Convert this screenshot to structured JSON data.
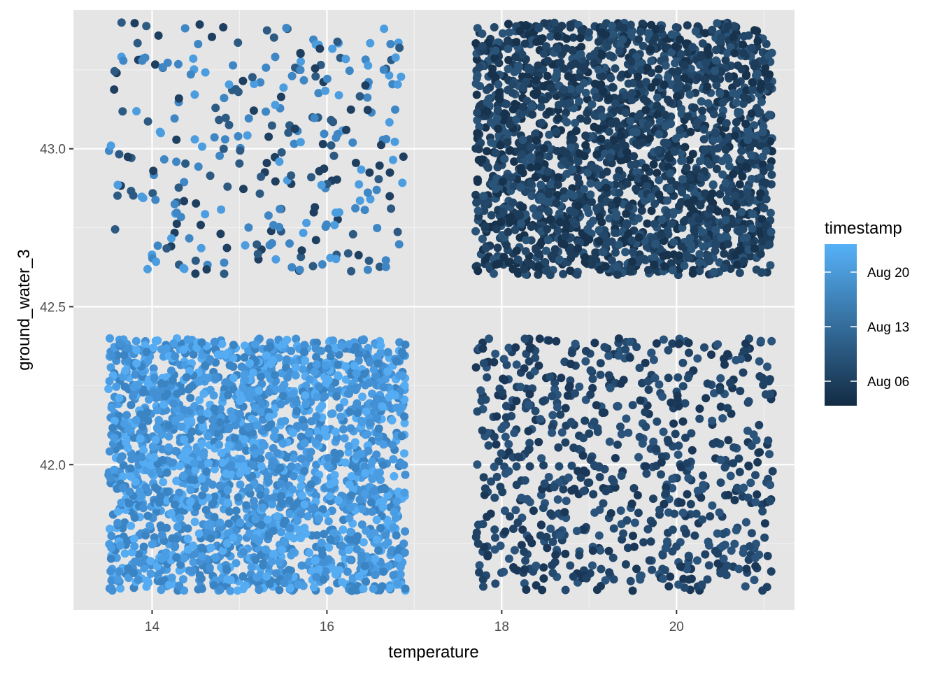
{
  "chart_data": {
    "type": "scatter",
    "title": "",
    "xlabel": "temperature",
    "ylabel": "ground_water_3",
    "xlim": [
      13.1,
      21.35
    ],
    "ylim": [
      41.54,
      43.44
    ],
    "x_ticks": [
      14,
      16,
      18,
      20
    ],
    "x_tick_labels": [
      "14",
      "16",
      "18",
      "20"
    ],
    "y_ticks": [
      42.0,
      42.5,
      43.0
    ],
    "y_tick_labels": [
      "42.0",
      "42.5",
      "43.0"
    ],
    "grid": true,
    "background": "#e5e5e5",
    "legend": {
      "title": "timestamp",
      "type": "colorbar",
      "placement": "right",
      "labels": [
        "Aug 20",
        "Aug 13",
        "Aug 06"
      ],
      "color_low": "#132b43",
      "color_high": "#56b1f7"
    },
    "clusters": [
      {
        "name": "",
        "x_range": [
          13.5,
          16.9
        ],
        "y_range": [
          42.6,
          43.4
        ],
        "approx_points": 300,
        "color_mix": "mixed",
        "color_values": [
          "#2d5a82",
          "#3f86c4",
          "#4b9de0",
          "#1e3f5f"
        ]
      },
      {
        "name": "",
        "x_range": [
          17.7,
          21.1
        ],
        "y_range": [
          42.6,
          43.4
        ],
        "approx_points": 2200,
        "color_mix": "dark",
        "color_values": [
          "#17324d",
          "#1d3c5a",
          "#234768",
          "#2a5378"
        ]
      },
      {
        "name": "",
        "x_range": [
          13.5,
          16.9
        ],
        "y_range": [
          41.6,
          42.4
        ],
        "approx_points": 2200,
        "color_mix": "light",
        "color_values": [
          "#3b84c4",
          "#4390d4",
          "#4b9de3",
          "#55acf2"
        ]
      },
      {
        "name": "",
        "x_range": [
          17.7,
          21.1
        ],
        "y_range": [
          41.6,
          42.4
        ],
        "approx_points": 750,
        "color_mix": "medium-dark",
        "color_values": [
          "#1f4264",
          "#244a70",
          "#2a547c",
          "#1a3757"
        ]
      }
    ]
  }
}
